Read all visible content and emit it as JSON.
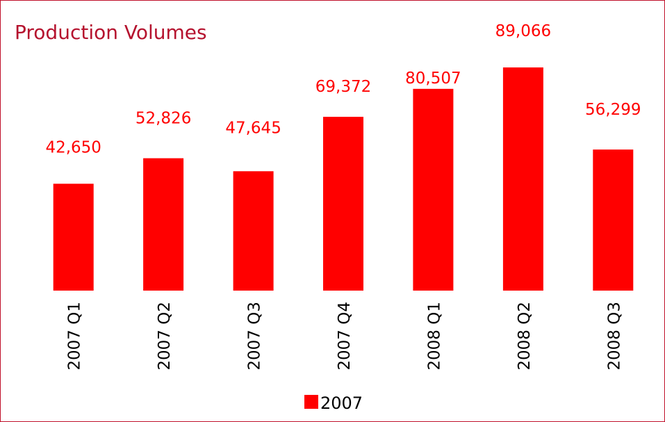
{
  "chart_data": {
    "type": "bar",
    "title": "Production Volumes",
    "categories": [
      "2007 Q1",
      "2007 Q2",
      "2007 Q3",
      "2007 Q4",
      "2008 Q1",
      "2008 Q2",
      "2008 Q3"
    ],
    "series": [
      {
        "name": "2007",
        "values": [
          42650,
          52826,
          47645,
          69372,
          80507,
          89066,
          56299
        ],
        "labels": [
          "42,650",
          "52,826",
          "47,645",
          "69,372",
          "80,507",
          "89,066",
          "56,299"
        ]
      }
    ],
    "xlabel": "",
    "ylabel": "",
    "ylim": [
      0,
      92000
    ],
    "grid": false,
    "legend_position": "bottom",
    "colors": {
      "bar": "#ff0000",
      "data_label": "#ff0000",
      "title": "#b5122e",
      "frame": "#c0102a",
      "axis_text": "#000000"
    }
  }
}
